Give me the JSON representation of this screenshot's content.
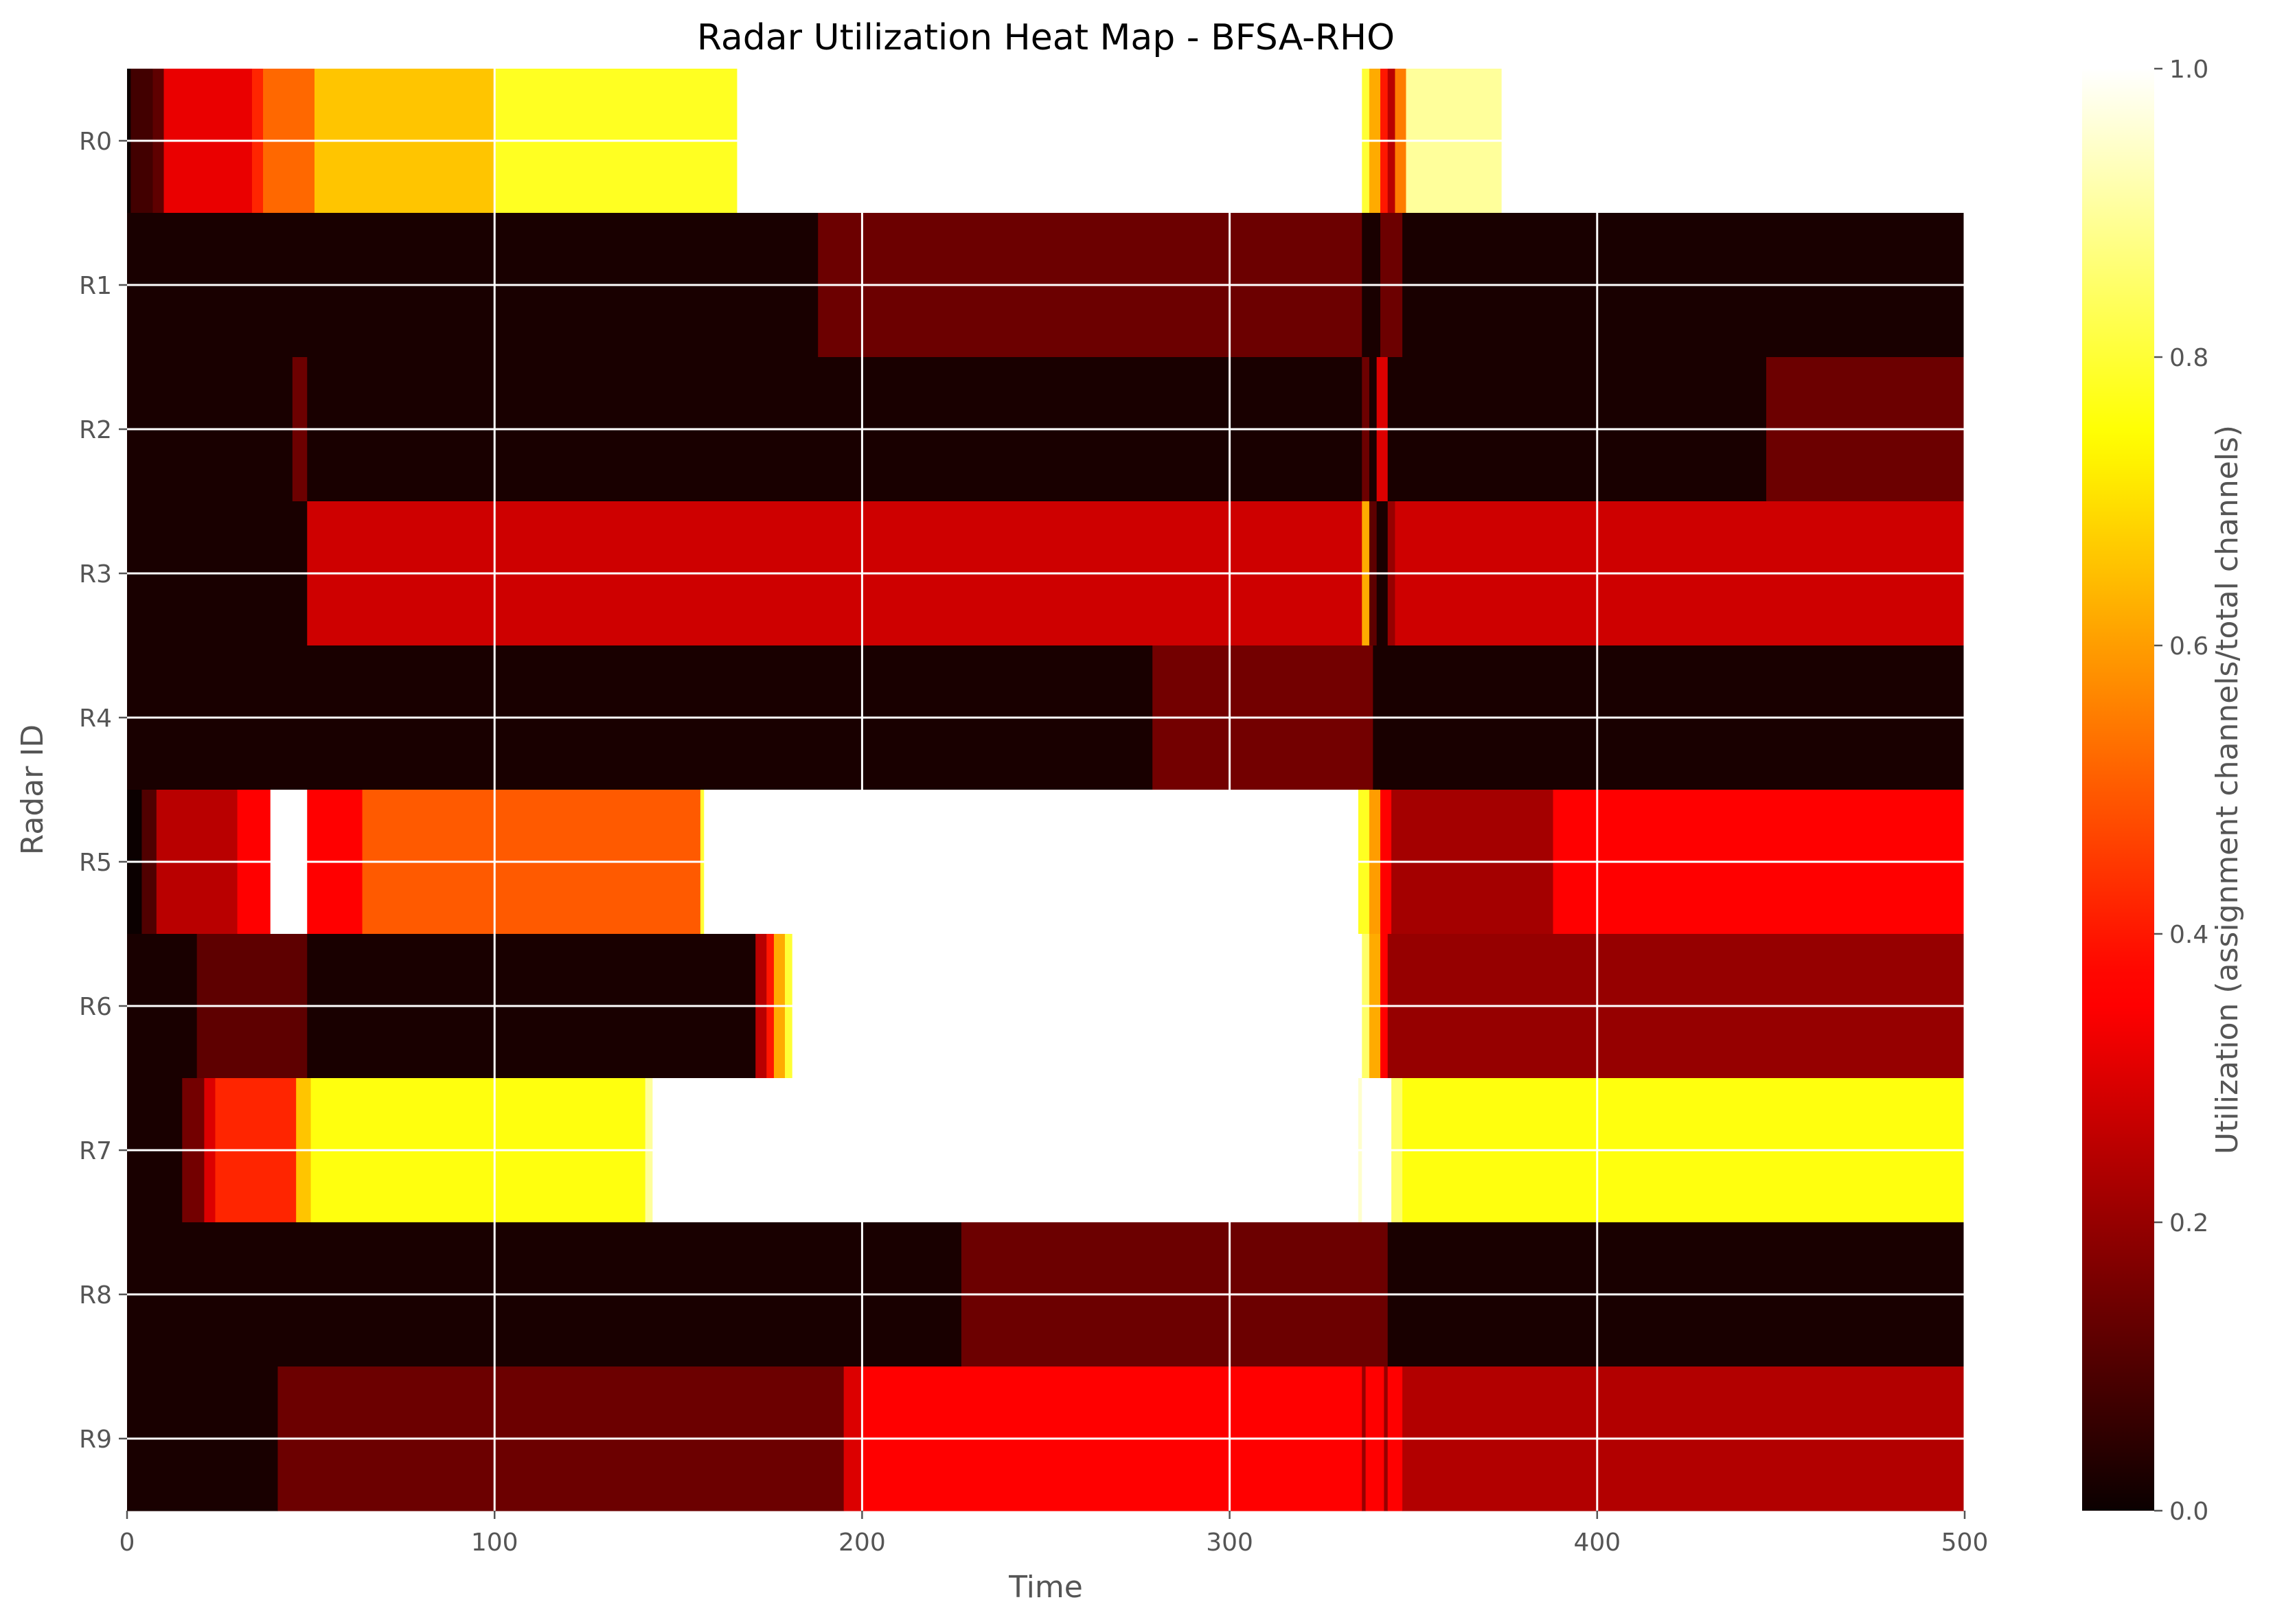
{
  "chart_data": {
    "type": "heatmap",
    "title": "Radar Utilization Heat Map - BFSA-RHO",
    "xlabel": "Time",
    "ylabel": "Radar ID",
    "xlim": [
      0,
      500
    ],
    "xticks": [
      0,
      100,
      200,
      300,
      400,
      500
    ],
    "colormap": "hot",
    "grid": true,
    "colorbar": {
      "label": "Utilization (assignment channels/total channels)",
      "range": [
        0,
        1
      ],
      "ticks": [
        "0.0",
        "0.2",
        "0.4",
        "0.6",
        "0.8",
        "1.0"
      ]
    },
    "rows": [
      {
        "id": "R0",
        "segments": [
          {
            "start": 0,
            "end": 1,
            "value": 0.0
          },
          {
            "start": 1,
            "end": 7,
            "value": 0.08
          },
          {
            "start": 7,
            "end": 10,
            "value": 0.12
          },
          {
            "start": 10,
            "end": 34,
            "value": 0.32
          },
          {
            "start": 34,
            "end": 37,
            "value": 0.42
          },
          {
            "start": 37,
            "end": 51,
            "value": 0.52
          },
          {
            "start": 51,
            "end": 100,
            "value": 0.66
          },
          {
            "start": 100,
            "end": 166,
            "value": 0.78
          },
          {
            "start": 166,
            "end": 336,
            "value": 1.0
          },
          {
            "start": 336,
            "end": 338,
            "value": 0.8
          },
          {
            "start": 338,
            "end": 341,
            "value": 0.62
          },
          {
            "start": 341,
            "end": 343,
            "value": 0.4
          },
          {
            "start": 343,
            "end": 345,
            "value": 0.25
          },
          {
            "start": 345,
            "end": 348,
            "value": 0.55
          },
          {
            "start": 348,
            "end": 374,
            "value": 0.9
          },
          {
            "start": 374,
            "end": 500,
            "value": 1.0
          }
        ]
      },
      {
        "id": "R1",
        "segments": [
          {
            "start": 0,
            "end": 188,
            "value": 0.02
          },
          {
            "start": 188,
            "end": 336,
            "value": 0.14
          },
          {
            "start": 336,
            "end": 341,
            "value": 0.02
          },
          {
            "start": 341,
            "end": 347,
            "value": 0.14
          },
          {
            "start": 347,
            "end": 500,
            "value": 0.02
          }
        ]
      },
      {
        "id": "R2",
        "segments": [
          {
            "start": 0,
            "end": 45,
            "value": 0.02
          },
          {
            "start": 45,
            "end": 49,
            "value": 0.14
          },
          {
            "start": 49,
            "end": 336,
            "value": 0.02
          },
          {
            "start": 336,
            "end": 338,
            "value": 0.14
          },
          {
            "start": 338,
            "end": 340,
            "value": 0.02
          },
          {
            "start": 340,
            "end": 343,
            "value": 0.3
          },
          {
            "start": 343,
            "end": 446,
            "value": 0.02
          },
          {
            "start": 446,
            "end": 500,
            "value": 0.14
          }
        ]
      },
      {
        "id": "R3",
        "segments": [
          {
            "start": 0,
            "end": 49,
            "value": 0.02
          },
          {
            "start": 49,
            "end": 336,
            "value": 0.28
          },
          {
            "start": 336,
            "end": 338,
            "value": 0.62
          },
          {
            "start": 338,
            "end": 340,
            "value": 0.12
          },
          {
            "start": 340,
            "end": 343,
            "value": 0.02
          },
          {
            "start": 343,
            "end": 345,
            "value": 0.2
          },
          {
            "start": 345,
            "end": 500,
            "value": 0.28
          }
        ]
      },
      {
        "id": "R4",
        "segments": [
          {
            "start": 0,
            "end": 279,
            "value": 0.02
          },
          {
            "start": 279,
            "end": 339,
            "value": 0.15
          },
          {
            "start": 339,
            "end": 500,
            "value": 0.02
          }
        ]
      },
      {
        "id": "R5",
        "segments": [
          {
            "start": 0,
            "end": 4,
            "value": 0.0
          },
          {
            "start": 4,
            "end": 8,
            "value": 0.1
          },
          {
            "start": 8,
            "end": 30,
            "value": 0.25
          },
          {
            "start": 30,
            "end": 39,
            "value": 0.36
          },
          {
            "start": 39,
            "end": 49,
            "value": 1.0
          },
          {
            "start": 49,
            "end": 64,
            "value": 0.36
          },
          {
            "start": 64,
            "end": 156,
            "value": 0.5
          },
          {
            "start": 156,
            "end": 157,
            "value": 0.8
          },
          {
            "start": 157,
            "end": 335,
            "value": 1.0
          },
          {
            "start": 335,
            "end": 338,
            "value": 0.78
          },
          {
            "start": 338,
            "end": 341,
            "value": 0.6
          },
          {
            "start": 341,
            "end": 344,
            "value": 0.35
          },
          {
            "start": 344,
            "end": 388,
            "value": 0.22
          },
          {
            "start": 388,
            "end": 500,
            "value": 0.36
          }
        ]
      },
      {
        "id": "R6",
        "segments": [
          {
            "start": 0,
            "end": 19,
            "value": 0.02
          },
          {
            "start": 19,
            "end": 49,
            "value": 0.12
          },
          {
            "start": 49,
            "end": 171,
            "value": 0.02
          },
          {
            "start": 171,
            "end": 174,
            "value": 0.25
          },
          {
            "start": 174,
            "end": 176,
            "value": 0.4
          },
          {
            "start": 176,
            "end": 179,
            "value": 0.62
          },
          {
            "start": 179,
            "end": 181,
            "value": 0.8
          },
          {
            "start": 181,
            "end": 336,
            "value": 1.0
          },
          {
            "start": 336,
            "end": 338,
            "value": 0.85
          },
          {
            "start": 338,
            "end": 341,
            "value": 0.62
          },
          {
            "start": 341,
            "end": 343,
            "value": 0.35
          },
          {
            "start": 343,
            "end": 500,
            "value": 0.2
          }
        ]
      },
      {
        "id": "R7",
        "segments": [
          {
            "start": 0,
            "end": 15,
            "value": 0.02
          },
          {
            "start": 15,
            "end": 21,
            "value": 0.15
          },
          {
            "start": 21,
            "end": 24,
            "value": 0.3
          },
          {
            "start": 24,
            "end": 46,
            "value": 0.42
          },
          {
            "start": 46,
            "end": 50,
            "value": 0.66
          },
          {
            "start": 50,
            "end": 141,
            "value": 0.76
          },
          {
            "start": 141,
            "end": 143,
            "value": 0.9
          },
          {
            "start": 143,
            "end": 335,
            "value": 1.0
          },
          {
            "start": 335,
            "end": 336,
            "value": 0.95
          },
          {
            "start": 336,
            "end": 344,
            "value": 1.0
          },
          {
            "start": 344,
            "end": 347,
            "value": 0.85
          },
          {
            "start": 347,
            "end": 500,
            "value": 0.76
          }
        ]
      },
      {
        "id": "R8",
        "segments": [
          {
            "start": 0,
            "end": 227,
            "value": 0.02
          },
          {
            "start": 227,
            "end": 343,
            "value": 0.14
          },
          {
            "start": 343,
            "end": 500,
            "value": 0.02
          }
        ]
      },
      {
        "id": "R9",
        "segments": [
          {
            "start": 0,
            "end": 41,
            "value": 0.02
          },
          {
            "start": 41,
            "end": 195,
            "value": 0.14
          },
          {
            "start": 195,
            "end": 200,
            "value": 0.3
          },
          {
            "start": 200,
            "end": 336,
            "value": 0.36
          },
          {
            "start": 336,
            "end": 337,
            "value": 0.2
          },
          {
            "start": 337,
            "end": 342,
            "value": 0.36
          },
          {
            "start": 342,
            "end": 343,
            "value": 0.2
          },
          {
            "start": 343,
            "end": 347,
            "value": 0.36
          },
          {
            "start": 347,
            "end": 500,
            "value": 0.24
          }
        ]
      }
    ]
  }
}
